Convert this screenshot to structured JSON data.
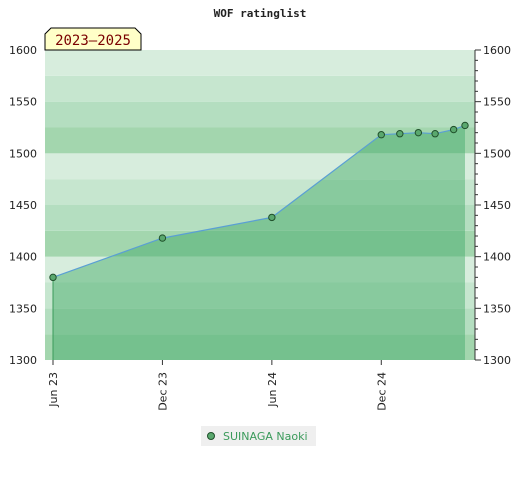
{
  "chart_data": {
    "type": "area",
    "title": "WOF ratinglist",
    "badge": "2023–2025",
    "ylim": [
      1300,
      1600
    ],
    "yticks": [
      1300,
      1350,
      1400,
      1450,
      1500,
      1550,
      1600
    ],
    "xticks": [
      {
        "label": "Jun 23",
        "date": "2023-06-01"
      },
      {
        "label": "Dec 23",
        "date": "2023-12-01"
      },
      {
        "label": "Jun 24",
        "date": "2024-06-01"
      },
      {
        "label": "Dec 24",
        "date": "2024-12-01"
      }
    ],
    "x_range": [
      "2023-06-01",
      "2025-04-20"
    ],
    "series": [
      {
        "name": "SUINAGA Naoki",
        "points": [
          {
            "x": "2023-06-01",
            "y": 1380
          },
          {
            "x": "2023-12-01",
            "y": 1418
          },
          {
            "x": "2024-06-01",
            "y": 1438
          },
          {
            "x": "2024-12-01",
            "y": 1518
          },
          {
            "x": "2025-01-01",
            "y": 1519
          },
          {
            "x": "2025-02-01",
            "y": 1520
          },
          {
            "x": "2025-03-01",
            "y": 1519
          },
          {
            "x": "2025-04-01",
            "y": 1523
          },
          {
            "x": "2025-04-20",
            "y": 1527
          }
        ]
      }
    ],
    "colors": {
      "line": "#5a9fd4",
      "marker_fill": "#5aa86e",
      "marker_stroke": "#1f4f2a",
      "badge_fill": "#ffffc8"
    },
    "legend_position": "bottom-center",
    "grid": true
  }
}
